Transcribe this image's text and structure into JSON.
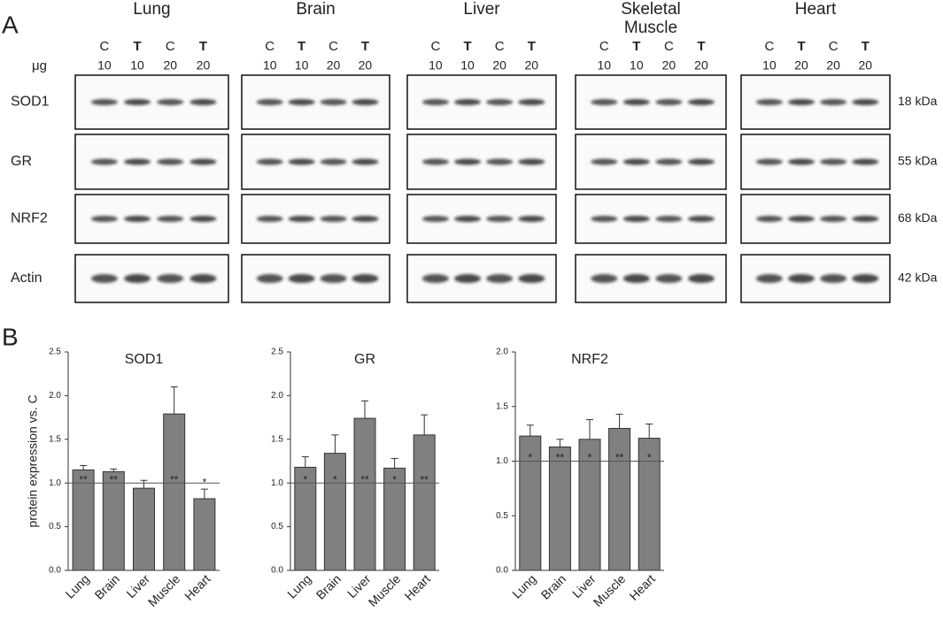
{
  "panel_labels": [
    "A",
    "B"
  ],
  "panel_a": {
    "amount_label": "μg",
    "tissues": [
      {
        "name": "Lung",
        "lanes": [
          {
            "treatment": "C",
            "amount": "10",
            "bold": false
          },
          {
            "treatment": "T",
            "amount": "10",
            "bold": true
          },
          {
            "treatment": "C",
            "amount": "20",
            "bold": false
          },
          {
            "treatment": "T",
            "amount": "20",
            "bold": true
          }
        ]
      },
      {
        "name": "Brain",
        "lanes": [
          {
            "treatment": "C",
            "amount": "10",
            "bold": false
          },
          {
            "treatment": "T",
            "amount": "10",
            "bold": true
          },
          {
            "treatment": "C",
            "amount": "20",
            "bold": false
          },
          {
            "treatment": "T",
            "amount": "20",
            "bold": true
          }
        ]
      },
      {
        "name": "Liver",
        "lanes": [
          {
            "treatment": "C",
            "amount": "10",
            "bold": false
          },
          {
            "treatment": "T",
            "amount": "10",
            "bold": true
          },
          {
            "treatment": "C",
            "amount": "20",
            "bold": false
          },
          {
            "treatment": "T",
            "amount": "20",
            "bold": true
          }
        ]
      },
      {
        "name": "Skeletal Muscle",
        "lanes": [
          {
            "treatment": "C",
            "amount": "10",
            "bold": false
          },
          {
            "treatment": "T",
            "amount": "10",
            "bold": true
          },
          {
            "treatment": "C",
            "amount": "20",
            "bold": false
          },
          {
            "treatment": "T",
            "amount": "20",
            "bold": true
          }
        ]
      },
      {
        "name": "Heart",
        "lanes": [
          {
            "treatment": "C",
            "amount": "10",
            "bold": false
          },
          {
            "treatment": "T",
            "amount": "20",
            "bold": true
          },
          {
            "treatment": "C",
            "amount": "20",
            "bold": false
          },
          {
            "treatment": "T",
            "amount": "20",
            "bold": true
          }
        ]
      }
    ],
    "proteins": [
      {
        "name": "SOD1",
        "size": "18 kDa"
      },
      {
        "name": "GR",
        "size": "55 kDa"
      },
      {
        "name": "NRF2",
        "size": "68 kDa"
      },
      {
        "name": "Actin",
        "size": "42 kDa"
      }
    ]
  },
  "chart_data": [
    {
      "type": "bar",
      "title": "SOD1",
      "y_label": "protein expression vs. C",
      "color": "#808080",
      "categories": [
        "Lung",
        "Brain",
        "Liver",
        "Muscle",
        "Heart"
      ],
      "values": [
        1.15,
        1.13,
        0.94,
        1.79,
        0.82
      ],
      "errors": [
        0.05,
        0.03,
        0.09,
        0.31,
        0.11
      ],
      "annotations": [
        "**",
        "**",
        null,
        "**",
        "*"
      ],
      "reference_line": 1,
      "ylim": [
        0,
        2.5
      ],
      "yticks": [
        {
          "value": 0,
          "label": "0.0"
        },
        0.5,
        {
          "value": 1,
          "label": "1.0"
        },
        1.5,
        {
          "value": 2,
          "label": "2.0"
        },
        2.5
      ]
    },
    {
      "type": "bar",
      "title": "GR",
      "color": "#808080",
      "categories": [
        "Lung",
        "Brain",
        "Liver",
        "Muscle",
        "Heart"
      ],
      "values": [
        1.18,
        1.34,
        1.74,
        1.17,
        1.55
      ],
      "errors": [
        0.12,
        0.21,
        0.2,
        0.11,
        0.23
      ],
      "annotations": [
        "*",
        "*",
        "**",
        "*",
        "**"
      ],
      "reference_line": 1,
      "ylim": [
        0,
        2.5
      ],
      "yticks": [
        {
          "value": 0,
          "label": "0.0"
        },
        0.5,
        {
          "value": 1,
          "label": "1.0"
        },
        1.5,
        {
          "value": 2,
          "label": "2.0"
        },
        2.5
      ]
    },
    {
      "type": "bar",
      "title": "NRF2",
      "color": "#808080",
      "categories": [
        "Lung",
        "Brain",
        "Liver",
        "Muscle",
        "Heart"
      ],
      "values": [
        1.23,
        1.13,
        1.2,
        1.3,
        1.21
      ],
      "errors": [
        0.1,
        0.07,
        0.18,
        0.13,
        0.13
      ],
      "annotations": [
        "*",
        "**",
        "*",
        "**",
        "*"
      ],
      "reference_line": 1,
      "ylim": [
        0,
        2
      ],
      "yticks": [
        {
          "value": 0,
          "label": "0.0"
        },
        0.5,
        {
          "value": 1,
          "label": "1.0"
        },
        1.5,
        {
          "value": 2,
          "label": "2.0"
        }
      ]
    }
  ]
}
